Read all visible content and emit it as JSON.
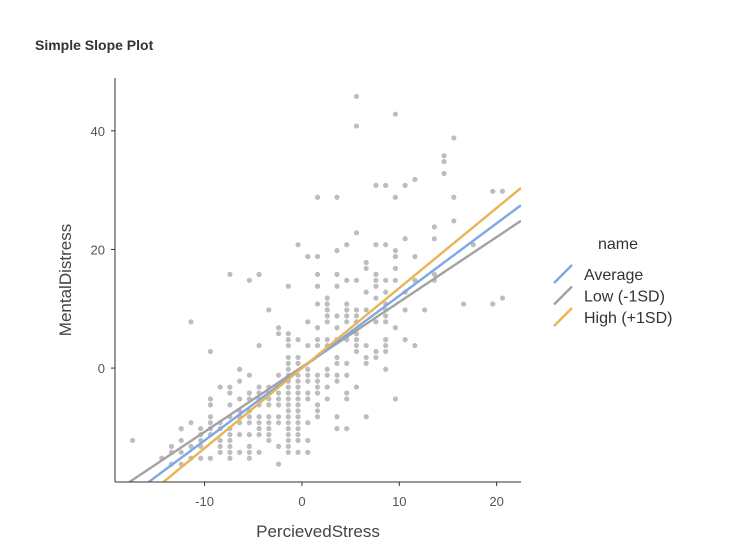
{
  "title": "Simple Slope Plot",
  "chart_data": {
    "type": "scatter",
    "title": "Simple Slope Plot",
    "xlabel": "PercievedStress",
    "ylabel": "MentalDistress",
    "xlim": [
      -19.2,
      22.5
    ],
    "ylim": [
      -19.2,
      48.9
    ],
    "xticks": [
      -10,
      0,
      10,
      20
    ],
    "yticks": [
      0,
      20,
      40
    ],
    "grid": false,
    "legend": {
      "title": "name",
      "placement": "right"
    },
    "point_color": "#9a9a9a",
    "lines": [
      {
        "name": "Average",
        "color": "#7da7e6",
        "intercept": 0.0,
        "slope": 1.22
      },
      {
        "name": "Low (-1SD)",
        "color": "#a3a3a3",
        "intercept": 0.2,
        "slope": 1.095
      },
      {
        "name": "High (+1SD)",
        "color": "#eab452",
        "intercept": 0.0,
        "slope": 1.35
      }
    ],
    "legend_order": [
      "Average",
      "Low (-1SD)",
      "High (+1SD)"
    ],
    "points": [
      [
        5.6,
        45.8
      ],
      [
        5.6,
        40.8
      ],
      [
        9.6,
        42.8
      ],
      [
        15.6,
        38.8
      ],
      [
        14.6,
        35.8
      ],
      [
        14.6,
        34.8
      ],
      [
        14.6,
        32.8
      ],
      [
        7.6,
        30.8
      ],
      [
        8.6,
        30.8
      ],
      [
        10.6,
        30.8
      ],
      [
        11.6,
        31.8
      ],
      [
        1.6,
        28.8
      ],
      [
        3.6,
        28.8
      ],
      [
        9.6,
        28.8
      ],
      [
        15.6,
        28.8
      ],
      [
        19.6,
        29.8
      ],
      [
        20.6,
        29.8
      ],
      [
        15.6,
        24.8
      ],
      [
        13.6,
        23.8
      ],
      [
        13.6,
        21.8
      ],
      [
        5.6,
        22.8
      ],
      [
        10.6,
        21.8
      ],
      [
        17.6,
        20.8
      ],
      [
        -0.4,
        20.8
      ],
      [
        4.6,
        20.8
      ],
      [
        7.6,
        20.8
      ],
      [
        8.6,
        20.8
      ],
      [
        0.6,
        18.8
      ],
      [
        1.6,
        18.8
      ],
      [
        3.6,
        19.8
      ],
      [
        9.6,
        19.8
      ],
      [
        9.6,
        18.8
      ],
      [
        11.6,
        18.8
      ],
      [
        6.6,
        17.8
      ],
      [
        6.6,
        16.8
      ],
      [
        9.6,
        16.8
      ],
      [
        -7.4,
        15.8
      ],
      [
        -4.4,
        15.8
      ],
      [
        -5.4,
        14.8
      ],
      [
        -1.4,
        13.8
      ],
      [
        1.6,
        15.8
      ],
      [
        3.6,
        15.8
      ],
      [
        1.6,
        13.8
      ],
      [
        3.6,
        13.8
      ],
      [
        4.6,
        14.8
      ],
      [
        5.6,
        14.8
      ],
      [
        7.6,
        15.8
      ],
      [
        7.6,
        14.8
      ],
      [
        8.6,
        14.8
      ],
      [
        9.6,
        14.8
      ],
      [
        11.6,
        14.8
      ],
      [
        13.6,
        15.8
      ],
      [
        13.6,
        14.8
      ],
      [
        7.6,
        13.8
      ],
      [
        6.6,
        12.8
      ],
      [
        8.6,
        12.8
      ],
      [
        10.6,
        12.8
      ],
      [
        2.6,
        11.8
      ],
      [
        2.6,
        10.8
      ],
      [
        2.6,
        9.8
      ],
      [
        2.6,
        8.8
      ],
      [
        2.6,
        7.8
      ],
      [
        1.6,
        10.8
      ],
      [
        4.6,
        10.8
      ],
      [
        4.6,
        9.8
      ],
      [
        4.6,
        8.8
      ],
      [
        4.6,
        7.8
      ],
      [
        3.6,
        8.8
      ],
      [
        3.6,
        6.8
      ],
      [
        5.6,
        9.8
      ],
      [
        5.6,
        8.8
      ],
      [
        5.6,
        7.8
      ],
      [
        6.6,
        9.8
      ],
      [
        7.6,
        11.8
      ],
      [
        7.6,
        7.8
      ],
      [
        8.6,
        10.8
      ],
      [
        8.6,
        9.8
      ],
      [
        8.6,
        8.8
      ],
      [
        8.6,
        7.8
      ],
      [
        9.6,
        6.8
      ],
      [
        10.6,
        9.8
      ],
      [
        12.6,
        9.8
      ],
      [
        16.6,
        10.8
      ],
      [
        19.6,
        10.8
      ],
      [
        20.6,
        11.8
      ],
      [
        10.6,
        4.8
      ],
      [
        11.6,
        3.8
      ],
      [
        -11.4,
        7.8
      ],
      [
        -3.4,
        9.8
      ],
      [
        -9.4,
        2.8
      ],
      [
        -4.4,
        3.8
      ],
      [
        -2.4,
        6.8
      ],
      [
        -2.4,
        5.8
      ],
      [
        -1.4,
        5.8
      ],
      [
        -1.4,
        4.8
      ],
      [
        -1.4,
        3.8
      ],
      [
        -1.4,
        1.8
      ],
      [
        -1.4,
        0.8
      ],
      [
        -1.4,
        -0.2
      ],
      [
        -0.4,
        4.8
      ],
      [
        -0.4,
        1.8
      ],
      [
        -0.4,
        0.8
      ],
      [
        0.6,
        7.8
      ],
      [
        0.6,
        3.8
      ],
      [
        1.6,
        6.8
      ],
      [
        1.6,
        4.8
      ],
      [
        1.6,
        3.8
      ],
      [
        2.6,
        4.8
      ],
      [
        2.6,
        3.8
      ],
      [
        3.6,
        4.8
      ],
      [
        3.6,
        1.8
      ],
      [
        3.6,
        0.8
      ],
      [
        3.6,
        -1.2
      ],
      [
        3.6,
        -2.2
      ],
      [
        4.6,
        4.8
      ],
      [
        4.6,
        0.8
      ],
      [
        4.6,
        -1.2
      ],
      [
        4.6,
        -4.2
      ],
      [
        4.6,
        -5.2
      ],
      [
        5.6,
        5.8
      ],
      [
        5.6,
        4.8
      ],
      [
        5.6,
        3.8
      ],
      [
        5.6,
        2.8
      ],
      [
        5.6,
        -3.2
      ],
      [
        6.6,
        3.8
      ],
      [
        6.6,
        1.8
      ],
      [
        6.6,
        0.8
      ],
      [
        7.6,
        2.8
      ],
      [
        7.6,
        1.8
      ],
      [
        8.6,
        4.8
      ],
      [
        8.6,
        3.8
      ],
      [
        8.6,
        2.8
      ],
      [
        8.6,
        -0.2
      ],
      [
        9.6,
        -5.2
      ],
      [
        6.6,
        -8.2
      ],
      [
        3.6,
        -8.2
      ],
      [
        3.6,
        -10.2
      ],
      [
        4.6,
        -10.2
      ],
      [
        2.6,
        -0.2
      ],
      [
        2.6,
        -1.2
      ],
      [
        2.6,
        -3.2
      ],
      [
        2.6,
        -5.2
      ],
      [
        1.6,
        -1.2
      ],
      [
        1.6,
        -2.2
      ],
      [
        1.6,
        -3.2
      ],
      [
        1.6,
        -4.2
      ],
      [
        1.6,
        -6.2
      ],
      [
        1.6,
        -7.2
      ],
      [
        1.6,
        -8.2
      ],
      [
        0.6,
        -0.2
      ],
      [
        0.6,
        -1.2
      ],
      [
        0.6,
        -2.2
      ],
      [
        0.6,
        -4.2
      ],
      [
        0.6,
        -5.2
      ],
      [
        0.6,
        -9.2
      ],
      [
        0.6,
        -12.2
      ],
      [
        0.6,
        -14.2
      ],
      [
        -0.4,
        -1.2
      ],
      [
        -0.4,
        -2.2
      ],
      [
        -0.4,
        -3.2
      ],
      [
        -0.4,
        -4.2
      ],
      [
        -0.4,
        -5.2
      ],
      [
        -0.4,
        -6.2
      ],
      [
        -0.4,
        -7.2
      ],
      [
        -0.4,
        -8.2
      ],
      [
        -0.4,
        -9.2
      ],
      [
        -0.4,
        -10.2
      ],
      [
        -0.4,
        -11.2
      ],
      [
        -0.4,
        -12.2
      ],
      [
        -0.4,
        -14.2
      ],
      [
        -1.4,
        -1.2
      ],
      [
        -1.4,
        -2.2
      ],
      [
        -1.4,
        -3.2
      ],
      [
        -1.4,
        -4.2
      ],
      [
        -1.4,
        -5.2
      ],
      [
        -1.4,
        -6.2
      ],
      [
        -1.4,
        -7.2
      ],
      [
        -1.4,
        -8.2
      ],
      [
        -1.4,
        -9.2
      ],
      [
        -1.4,
        -10.2
      ],
      [
        -1.4,
        -11.2
      ],
      [
        -1.4,
        -12.2
      ],
      [
        -1.4,
        -13.2
      ],
      [
        -1.4,
        -14.2
      ],
      [
        -2.4,
        -1.2
      ],
      [
        -2.4,
        -4.2
      ],
      [
        -2.4,
        -5.2
      ],
      [
        -2.4,
        -6.2
      ],
      [
        -2.4,
        -8.2
      ],
      [
        -2.4,
        -9.2
      ],
      [
        -2.4,
        -13.2
      ],
      [
        -2.4,
        -16.2
      ],
      [
        -3.4,
        -3.2
      ],
      [
        -3.4,
        -4.2
      ],
      [
        -3.4,
        -5.2
      ],
      [
        -3.4,
        -6.2
      ],
      [
        -3.4,
        -8.2
      ],
      [
        -3.4,
        -9.2
      ],
      [
        -3.4,
        -10.2
      ],
      [
        -3.4,
        -11.2
      ],
      [
        -3.4,
        -12.2
      ],
      [
        -4.4,
        -3.2
      ],
      [
        -4.4,
        -4.2
      ],
      [
        -4.4,
        -5.2
      ],
      [
        -4.4,
        -6.2
      ],
      [
        -4.4,
        -8.2
      ],
      [
        -4.4,
        -9.2
      ],
      [
        -4.4,
        -10.2
      ],
      [
        -4.4,
        -11.2
      ],
      [
        -4.4,
        -14.2
      ],
      [
        -5.4,
        -1.2
      ],
      [
        -5.4,
        -4.2
      ],
      [
        -5.4,
        -5.2
      ],
      [
        -5.4,
        -7.2
      ],
      [
        -5.4,
        -8.2
      ],
      [
        -5.4,
        -9.2
      ],
      [
        -5.4,
        -11.2
      ],
      [
        -5.4,
        -13.2
      ],
      [
        -5.4,
        -14.2
      ],
      [
        -5.4,
        -15.2
      ],
      [
        -6.4,
        -0.2
      ],
      [
        -6.4,
        -2.2
      ],
      [
        -6.4,
        -5.2
      ],
      [
        -6.4,
        -7.2
      ],
      [
        -6.4,
        -8.2
      ],
      [
        -6.4,
        -9.2
      ],
      [
        -6.4,
        -11.2
      ],
      [
        -6.4,
        -14.2
      ],
      [
        -7.4,
        -3.2
      ],
      [
        -7.4,
        -4.2
      ],
      [
        -7.4,
        -6.2
      ],
      [
        -7.4,
        -8.2
      ],
      [
        -7.4,
        -10.2
      ],
      [
        -7.4,
        -11.2
      ],
      [
        -7.4,
        -12.2
      ],
      [
        -7.4,
        -13.2
      ],
      [
        -7.4,
        -14.2
      ],
      [
        -7.4,
        -15.2
      ],
      [
        -8.4,
        -3.2
      ],
      [
        -8.4,
        -9.2
      ],
      [
        -8.4,
        -10.2
      ],
      [
        -8.4,
        -12.2
      ],
      [
        -8.4,
        -13.2
      ],
      [
        -8.4,
        -14.2
      ],
      [
        -9.4,
        -5.2
      ],
      [
        -9.4,
        -6.2
      ],
      [
        -9.4,
        -8.2
      ],
      [
        -9.4,
        -9.2
      ],
      [
        -9.4,
        -10.2
      ],
      [
        -9.4,
        -11.2
      ],
      [
        -9.4,
        -15.2
      ],
      [
        -10.4,
        -10.2
      ],
      [
        -10.4,
        -11.2
      ],
      [
        -10.4,
        -12.2
      ],
      [
        -10.4,
        -13.2
      ],
      [
        -10.4,
        -15.2
      ],
      [
        -11.4,
        -9.2
      ],
      [
        -11.4,
        -13.2
      ],
      [
        -11.4,
        -15.2
      ],
      [
        -12.4,
        -10.2
      ],
      [
        -12.4,
        -12.2
      ],
      [
        -12.4,
        -14.2
      ],
      [
        -12.4,
        -16.2
      ],
      [
        -13.4,
        -13.2
      ],
      [
        -13.4,
        -14.2
      ],
      [
        -13.4,
        -16.2
      ],
      [
        -14.4,
        -15.2
      ],
      [
        -17.4,
        -12.2
      ]
    ]
  }
}
